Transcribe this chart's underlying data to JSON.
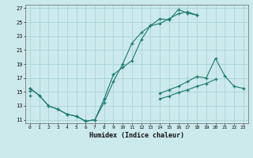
{
  "xlabel": "Humidex (Indice chaleur)",
  "bg_color": "#cce9eb",
  "grid_color": "#aad4d7",
  "line_color": "#1a7a6e",
  "xlim": [
    -0.5,
    23.5
  ],
  "ylim": [
    10.5,
    27.5
  ],
  "xticks": [
    0,
    1,
    2,
    3,
    4,
    5,
    6,
    7,
    8,
    9,
    10,
    11,
    12,
    13,
    14,
    15,
    16,
    17,
    18,
    19,
    20,
    21,
    22,
    23
  ],
  "yticks": [
    11,
    13,
    15,
    17,
    19,
    21,
    23,
    25,
    27
  ],
  "s1_y": [
    15.5,
    14.5,
    13.0,
    12.5,
    11.8,
    11.5,
    10.8,
    11.0,
    13.5,
    16.5,
    19.0,
    22.0,
    23.5,
    24.5,
    24.8,
    25.5,
    26.2,
    26.5,
    26.0,
    null,
    null,
    null,
    null,
    null
  ],
  "s2_y": [
    null,
    null,
    null,
    null,
    null,
    null,
    null,
    null,
    null,
    null,
    null,
    null,
    null,
    null,
    null,
    null,
    null,
    null,
    null,
    null,
    null,
    null,
    null,
    null
  ],
  "s3_y": [
    15.2,
    null,
    null,
    null,
    null,
    null,
    null,
    null,
    null,
    null,
    null,
    null,
    null,
    null,
    14.8,
    15.3,
    15.8,
    16.5,
    17.2,
    17.0,
    19.8,
    17.3,
    15.8,
    15.5
  ],
  "s4_y": [
    14.5,
    null,
    null,
    null,
    null,
    null,
    null,
    null,
    null,
    null,
    null,
    null,
    null,
    null,
    14.0,
    14.4,
    14.9,
    15.3,
    15.8,
    16.2,
    16.8,
    null,
    null,
    null
  ],
  "s1b_y": [
    15.5,
    14.5,
    13.0,
    12.5,
    11.8,
    11.5,
    10.8,
    11.0,
    14.0,
    17.5,
    18.5,
    19.5,
    22.5,
    24.5,
    25.5,
    25.3,
    26.8,
    26.3,
    26.0,
    null,
    null,
    null,
    null,
    null
  ],
  "x": [
    0,
    1,
    2,
    3,
    4,
    5,
    6,
    7,
    8,
    9,
    10,
    11,
    12,
    13,
    14,
    15,
    16,
    17,
    18,
    19,
    20,
    21,
    22,
    23
  ]
}
